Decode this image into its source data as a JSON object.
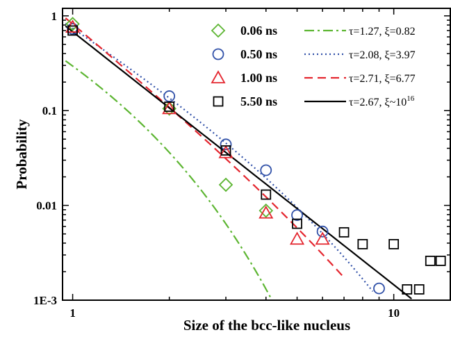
{
  "chart_data": {
    "type": "scatter",
    "xlabel": "Size of the bcc-like nucleus",
    "ylabel": "Probability",
    "xscale": "log",
    "yscale": "log",
    "xlim": [
      0.93,
      15
    ],
    "ylim": [
      0.001,
      1.2
    ],
    "x_ticks": [
      {
        "value": 1,
        "label": "1"
      },
      {
        "value": 10,
        "label": "10"
      }
    ],
    "y_ticks": [
      {
        "value": 1,
        "label": "1"
      },
      {
        "value": 0.1,
        "label": "0.1"
      },
      {
        "value": 0.01,
        "label": "0.01"
      },
      {
        "value": 0.001,
        "label": "1E-3"
      }
    ],
    "legend_position": "top-right",
    "grid": false,
    "series": [
      {
        "name": "0.06 ns",
        "marker": "diamond",
        "color": "#5cb531",
        "x": [
          1,
          2,
          3,
          4
        ],
        "y": [
          0.82,
          0.105,
          0.0165,
          0.0088
        ]
      },
      {
        "name": "0.50 ns",
        "marker": "circle",
        "color": "#3050a8",
        "x": [
          1,
          2,
          3,
          4,
          5,
          6,
          9
        ],
        "y": [
          0.73,
          0.142,
          0.044,
          0.0235,
          0.0079,
          0.0053,
          0.00133
        ]
      },
      {
        "name": "1.00 ns",
        "marker": "triangle",
        "color": "#e4252e",
        "x": [
          1,
          2,
          3,
          4,
          5,
          6
        ],
        "y": [
          0.76,
          0.105,
          0.036,
          0.0083,
          0.0044,
          0.0044
        ]
      },
      {
        "name": "5.50 ns",
        "marker": "square",
        "color": "#000000",
        "x": [
          1,
          2,
          3,
          4,
          5,
          7,
          8,
          10,
          11,
          12,
          13,
          14
        ],
        "y": [
          0.7,
          0.11,
          0.038,
          0.013,
          0.0064,
          0.0052,
          0.0039,
          0.0039,
          0.0013,
          0.0013,
          0.0026,
          0.0026
        ]
      }
    ],
    "fits": [
      {
        "label": "τ=1.27, ξ=0.82",
        "color": "#5cb531",
        "dash": "dash-dot",
        "tau": 1.27,
        "xi": 0.82,
        "A": 1.0,
        "x_range": [
          0.95,
          4.5
        ]
      },
      {
        "label": "τ=2.08, ξ=3.97",
        "color": "#3050a8",
        "dash": "dotted",
        "tau": 2.08,
        "xi": 3.97,
        "A": 0.95,
        "x_range": [
          0.95,
          8.6
        ]
      },
      {
        "label": "τ=2.71, ξ=6.77",
        "color": "#e4252e",
        "dash": "dashed",
        "tau": 2.71,
        "xi": 6.77,
        "A": 0.95,
        "x_range": [
          0.95,
          7.0
        ]
      },
      {
        "label_base": "τ=2.67, ξ~10",
        "label_sup": "16",
        "color": "#000000",
        "dash": "solid",
        "tau": 2.67,
        "xi": 1e+16,
        "A": 0.68,
        "x_range": [
          0.95,
          11.8
        ]
      }
    ]
  }
}
